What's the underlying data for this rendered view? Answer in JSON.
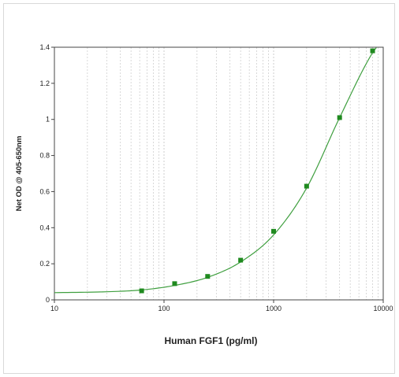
{
  "chart_data": {
    "type": "scatter",
    "title": "",
    "xlabel": "Human FGF1  (pg/ml)",
    "ylabel": "Net OD @ 405-650nm",
    "x_scale": "log",
    "xlim": [
      10,
      10000
    ],
    "ylim": [
      0,
      1.4
    ],
    "x_ticks": [
      10,
      100,
      1000,
      10000
    ],
    "x_tick_labels": [
      "10",
      "100",
      "1000",
      "10000"
    ],
    "y_ticks": [
      0,
      0.2,
      0.4,
      0.6,
      0.8,
      1,
      1.2,
      1.4
    ],
    "y_tick_labels": [
      "0",
      "0.2",
      "0.4",
      "0.6",
      "0.8",
      "1",
      "1.2",
      "1.4"
    ],
    "grid": "vertical minor log gridlines",
    "colors": {
      "points": "#1f8a1f",
      "curve": "#3f9f3f",
      "grid": "#c8c8c8"
    },
    "series": [
      {
        "x": [
          62.5,
          125,
          250,
          500,
          1000,
          2000,
          4000,
          8000
        ],
        "y": [
          0.05,
          0.09,
          0.13,
          0.22,
          0.38,
          0.63,
          1.01,
          1.38
        ]
      }
    ],
    "fit_curve": {
      "x": [
        10,
        30,
        62.5,
        125,
        250,
        500,
        1000,
        2000,
        4000,
        8000,
        9000
      ],
      "y": [
        0.04,
        0.045,
        0.055,
        0.08,
        0.125,
        0.21,
        0.36,
        0.62,
        1.01,
        1.37,
        1.41
      ]
    }
  }
}
